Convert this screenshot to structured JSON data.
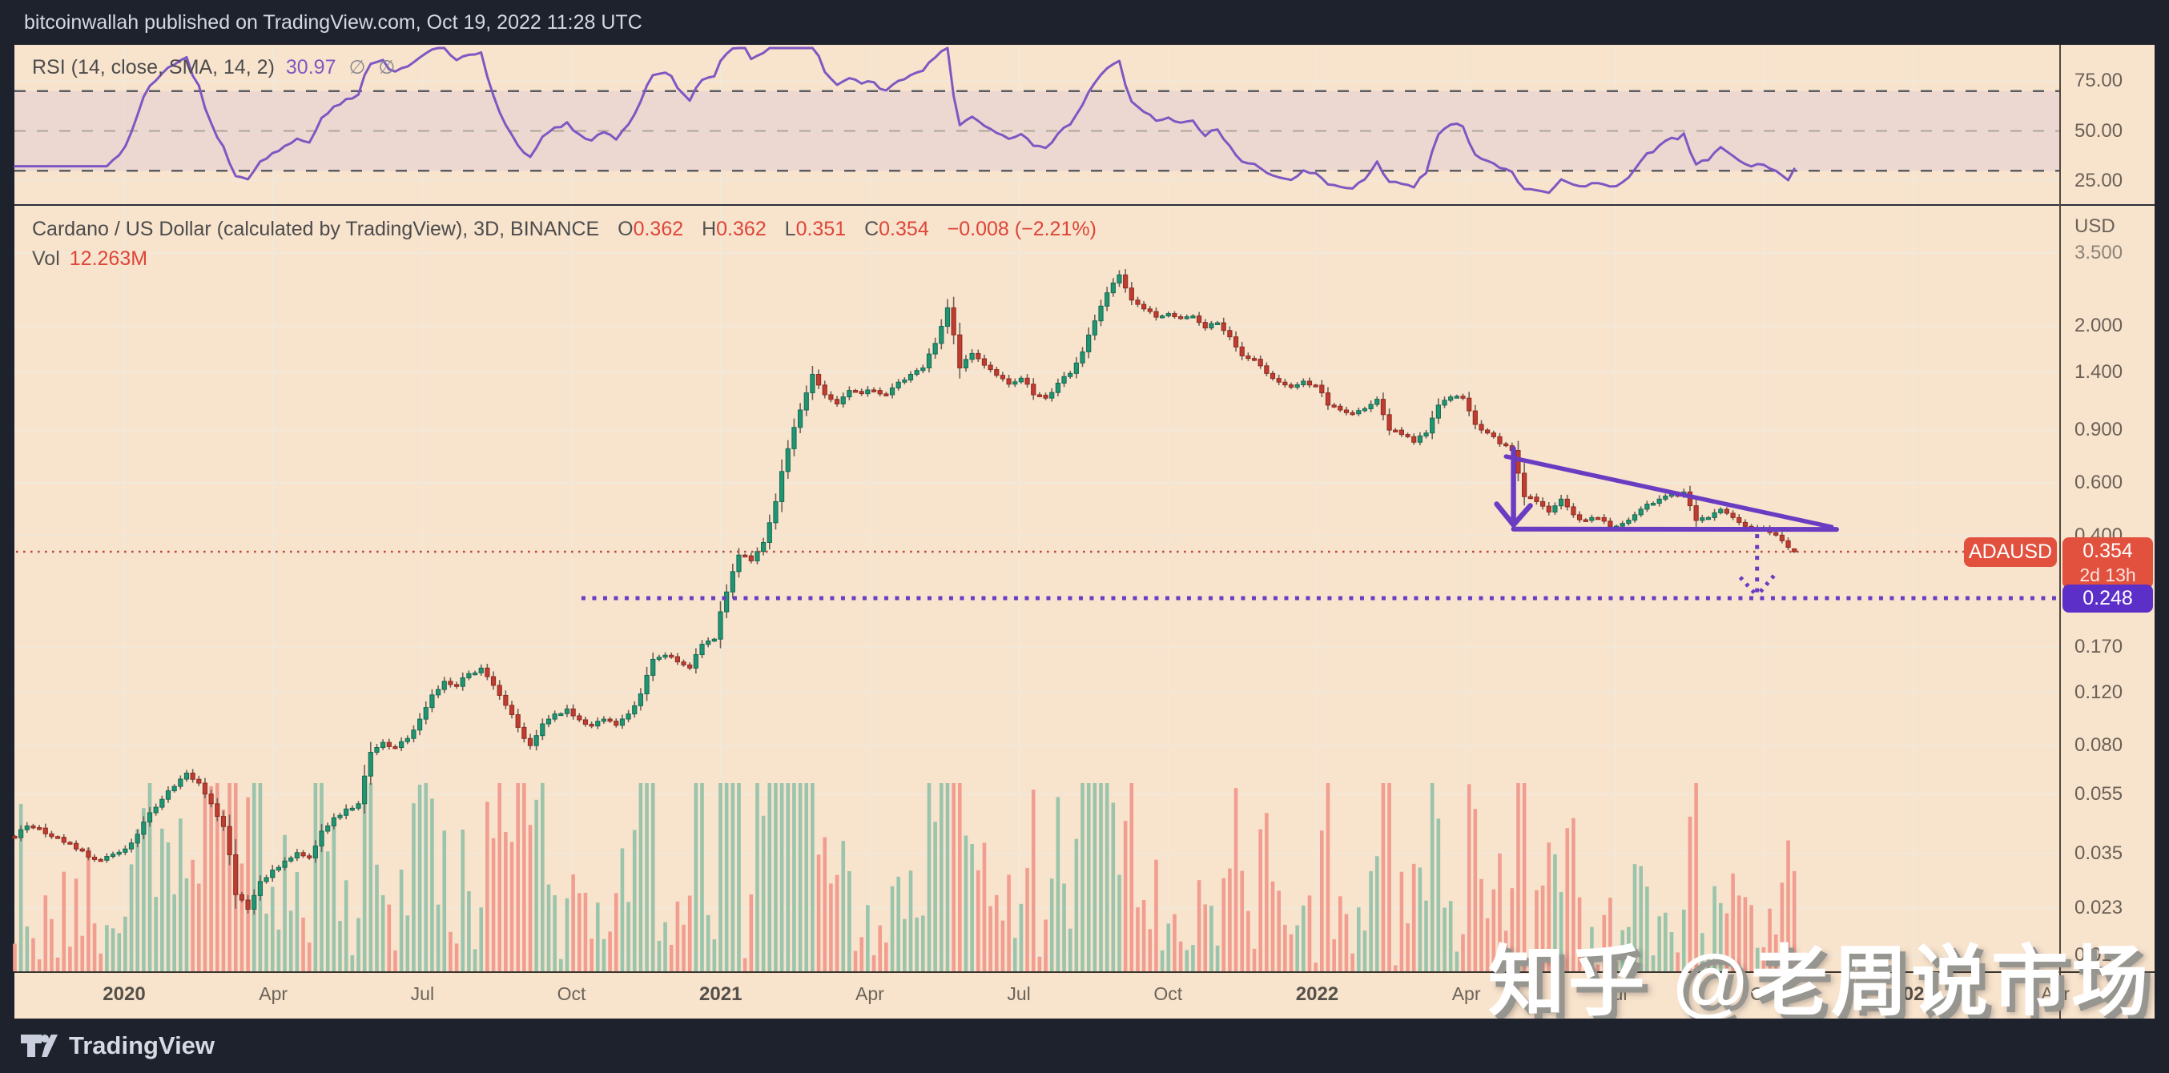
{
  "top_bar": {
    "text": "bitcoinwallah published on TradingView.com, Oct 19, 2022 11:28 UTC"
  },
  "rsi_pane": {
    "label": "RSI (14, close, SMA, 14, 2)",
    "value": "30.97",
    "icons": [
      "∅",
      "∅"
    ],
    "ticks": [
      {
        "t": "75.00",
        "v": 75
      },
      {
        "t": "50.00",
        "v": 50
      },
      {
        "t": "25.00",
        "v": 25
      }
    ],
    "levels": {
      "upper": 70,
      "mid": 50,
      "lower": 30
    }
  },
  "main_pane": {
    "symbol_line": "Cardano / US Dollar (calculated by TradingView), 3D, BINANCE",
    "ohlc": [
      {
        "k": "O",
        "v": "0.362"
      },
      {
        "k": "H",
        "v": "0.362"
      },
      {
        "k": "L",
        "v": "0.351"
      },
      {
        "k": "C",
        "v": "0.354"
      }
    ],
    "change": "−0.008 (−2.21%)",
    "vol_label": "Vol",
    "vol_value": "12.263M"
  },
  "price_axis": {
    "currency": "USD",
    "ticks": [
      {
        "t": "3.500",
        "v": 3.5,
        "dim": true
      },
      {
        "t": "2.000",
        "v": 2.0
      },
      {
        "t": "1.400",
        "v": 1.4
      },
      {
        "t": "0.900",
        "v": 0.9
      },
      {
        "t": "0.600",
        "v": 0.6
      },
      {
        "t": "0.400",
        "v": 0.4
      },
      {
        "t": "0.170",
        "v": 0.17
      },
      {
        "t": "0.120",
        "v": 0.12
      },
      {
        "t": "0.080",
        "v": 0.08
      },
      {
        "t": "0.055",
        "v": 0.055
      },
      {
        "t": "0.035",
        "v": 0.035
      },
      {
        "t": "0.023",
        "v": 0.023
      },
      {
        "t": "0.016",
        "v": 0.016
      }
    ]
  },
  "time_axis": [
    {
      "t": "2020",
      "m": 0,
      "bold": true
    },
    {
      "t": "Apr",
      "m": 3
    },
    {
      "t": "Jul",
      "m": 6
    },
    {
      "t": "Oct",
      "m": 9
    },
    {
      "t": "2021",
      "m": 12,
      "bold": true
    },
    {
      "t": "Apr",
      "m": 15
    },
    {
      "t": "Jul",
      "m": 18
    },
    {
      "t": "Oct",
      "m": 21
    },
    {
      "t": "2022",
      "m": 24,
      "bold": true
    },
    {
      "t": "Apr",
      "m": 27
    },
    {
      "t": "Jul",
      "m": 30
    },
    {
      "t": "Oct",
      "m": 33
    },
    {
      "t": "2023",
      "m": 36,
      "bold": true
    },
    {
      "t": "Apr",
      "m": 39
    }
  ],
  "labels": {
    "symbol_tag": "ADAUSD",
    "last_price": "0.354",
    "countdown": "2d 13h",
    "target_price": "0.248"
  },
  "bottom_bar": {
    "brand": "TradingView"
  },
  "watermark": "知乎 @老周说市场",
  "colors": {
    "chrome": "#1e222d",
    "chrome_text": "#d5d8e0",
    "pane_bg": "#f8e3cd",
    "grid": "#f2e8d9",
    "candle_up": "#219472",
    "candle_up_border": "#146b52",
    "candle_down": "#bf3d30",
    "candle_down_border": "#8f2b21",
    "wick": "#6e6156",
    "vol_up": "#9ac4ab",
    "vol_down": "#f19d90",
    "rsi_line": "#7e57c2",
    "rsi_band": "#e9d5d2",
    "dash_strong": "#5c5d63",
    "dash_mid": "#ada698",
    "drawing_purple": "#6a3cc2",
    "price_line_red": "#bc4a3e",
    "tag_red": "#e2503e",
    "tag_purple": "#5c2fc9",
    "axis_border": "#50483e",
    "separator": "#2b2f3a"
  },
  "chart_data": {
    "type": "candlestick",
    "symbol": "ADAUSD",
    "interval": "3D",
    "price_scale": "log",
    "ylim": [
      0.016,
      3.5
    ],
    "yticks": [
      3.5,
      2.0,
      1.4,
      0.9,
      0.6,
      0.4,
      0.17,
      0.12,
      0.08,
      0.055,
      0.035,
      0.023,
      0.016
    ],
    "x_start_month_offset": -2.2,
    "x_end_month_offset": 33.6,
    "x_month_zero": "Jan 2020",
    "closes_weekly": [
      0.0395,
      0.0432,
      0.0425,
      0.0398,
      0.0381,
      0.0362,
      0.034,
      0.0332,
      0.0348,
      0.0362,
      0.0405,
      0.0478,
      0.053,
      0.0585,
      0.0648,
      0.06,
      0.0512,
      0.043,
      0.0255,
      0.0228,
      0.0282,
      0.0308,
      0.033,
      0.0352,
      0.0338,
      0.0415,
      0.046,
      0.0492,
      0.0512,
      0.076,
      0.082,
      0.0788,
      0.0845,
      0.098,
      0.118,
      0.131,
      0.126,
      0.139,
      0.145,
      0.127,
      0.109,
      0.092,
      0.08,
      0.0945,
      0.102,
      0.106,
      0.0975,
      0.093,
      0.098,
      0.0935,
      0.102,
      0.119,
      0.155,
      0.16,
      0.152,
      0.145,
      0.174,
      0.181,
      0.26,
      0.345,
      0.33,
      0.38,
      0.52,
      0.78,
      1.05,
      1.38,
      1.18,
      1.1,
      1.22,
      1.19,
      1.22,
      1.18,
      1.3,
      1.38,
      1.45,
      1.75,
      2.3,
      1.45,
      1.62,
      1.48,
      1.37,
      1.28,
      1.34,
      1.18,
      1.15,
      1.29,
      1.39,
      1.64,
      2.08,
      2.58,
      2.96,
      2.44,
      2.28,
      2.14,
      2.2,
      2.13,
      2.16,
      1.97,
      2.05,
      1.84,
      1.59,
      1.55,
      1.39,
      1.3,
      1.25,
      1.31,
      1.27,
      1.09,
      1.05,
      1.02,
      1.06,
      1.14,
      0.9,
      0.87,
      0.82,
      0.88,
      1.09,
      1.16,
      1.15,
      0.94,
      0.88,
      0.81,
      0.77,
      0.54,
      0.52,
      0.48,
      0.53,
      0.47,
      0.45,
      0.46,
      0.43,
      0.44,
      0.47,
      0.51,
      0.53,
      0.55,
      0.56,
      0.45,
      0.46,
      0.49,
      0.46,
      0.43,
      0.425,
      0.41,
      0.385,
      0.354
    ],
    "last_candle": {
      "o": 0.362,
      "h": 0.362,
      "l": 0.351,
      "c": 0.354
    },
    "volume_last": "12.263M",
    "rsi": {
      "period": 14,
      "last": 30.97,
      "overbought": 70,
      "oversold": 30
    },
    "annotations": {
      "current_price_line": {
        "price": 0.354
      },
      "target_line": {
        "price": 0.248,
        "start_month": 9.2
      },
      "vertical_dotted_arrow": {
        "month": 32.85,
        "from_price": 0.405,
        "to_price": 0.252
      },
      "triangle_upper": {
        "from": {
          "month": 27.8,
          "price": 0.735
        },
        "to": {
          "month": 34.35,
          "price": 0.428
        }
      },
      "triangle_lower": {
        "from": {
          "month": 27.95,
          "price": 0.421
        },
        "to": {
          "month": 34.45,
          "price": 0.42
        }
      },
      "down_arrow": {
        "month": 27.95,
        "from_price": 0.78,
        "to_price": 0.435
      }
    }
  }
}
